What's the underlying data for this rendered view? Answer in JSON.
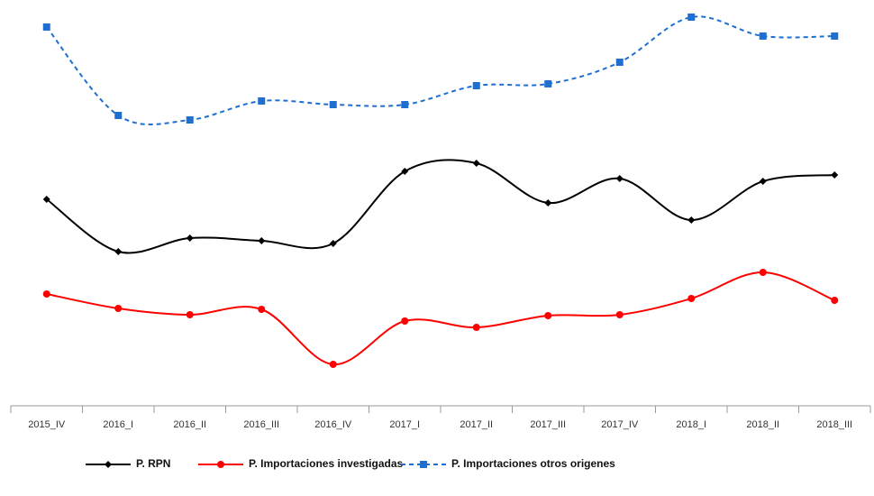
{
  "chart_data": {
    "type": "line",
    "categories": [
      "2015_IV",
      "2016_I",
      "2016_II",
      "2016_III",
      "2016_IV",
      "2017_I",
      "2017_II",
      "2017_III",
      "2017_IV",
      "2018_I",
      "2018_II",
      "2018_III"
    ],
    "series": [
      {
        "name": "P. RPN",
        "color": "#000000",
        "values": [
          229,
          171,
          186,
          183,
          180,
          260,
          269,
          225,
          252,
          206,
          249,
          256
        ]
      },
      {
        "name": "P. Importaciones investigadas",
        "color": "#ff0000",
        "values": [
          124,
          108,
          101,
          107,
          46,
          94,
          87,
          100,
          101,
          119,
          148,
          117
        ]
      },
      {
        "name": "P. Importaciones otros origenes",
        "color": "#1f6fd1",
        "values": [
          420,
          322,
          317,
          338,
          334,
          334,
          355,
          357,
          381,
          431,
          410,
          410
        ]
      }
    ]
  }
}
